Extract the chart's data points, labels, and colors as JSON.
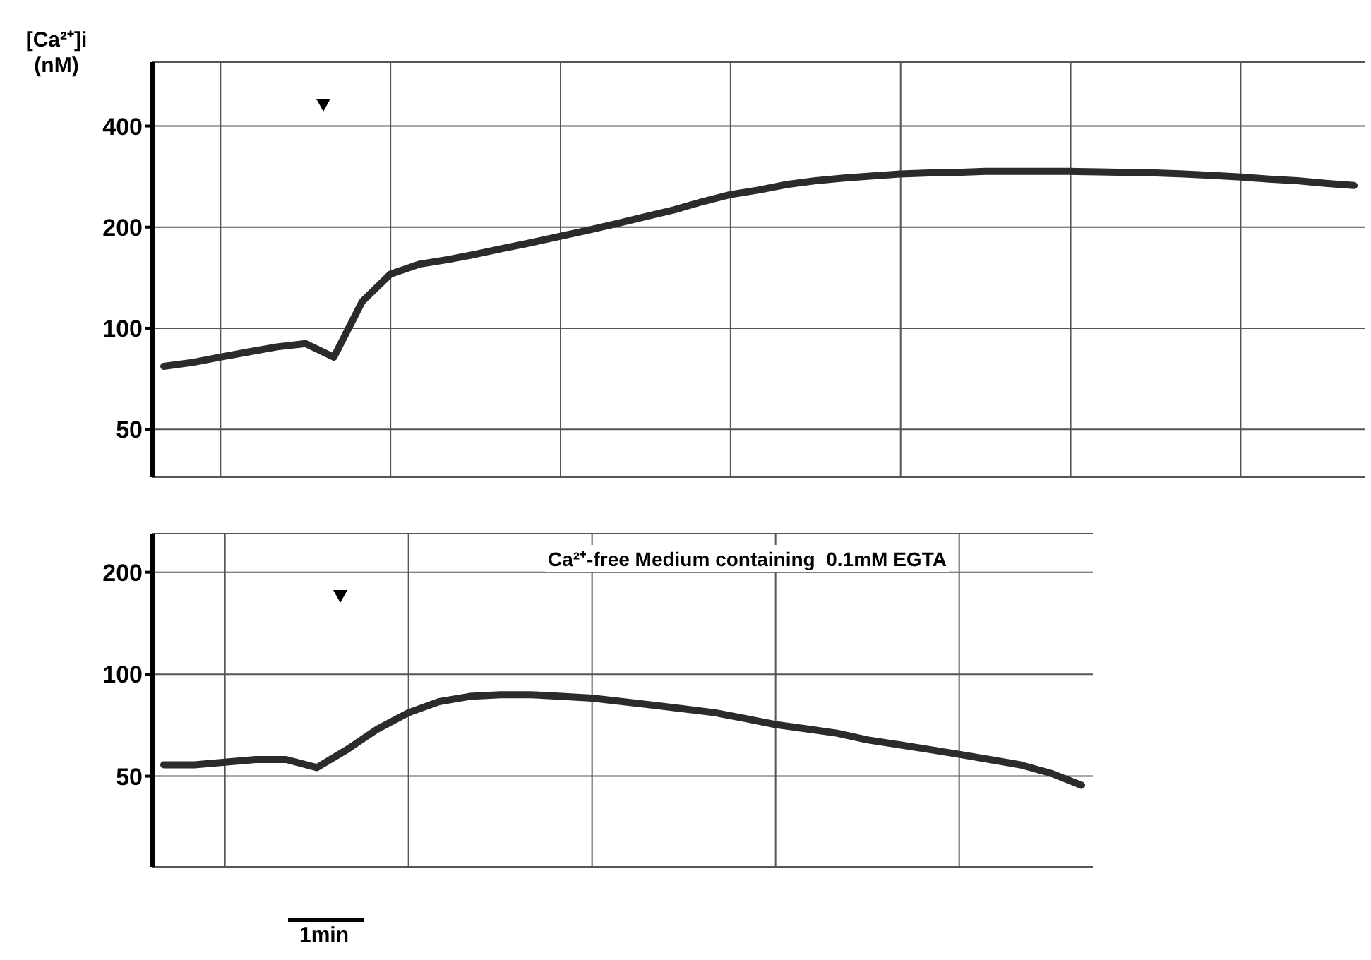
{
  "chart_data": [
    {
      "type": "line",
      "ylabel": "[Ca²⁺]i (nM)",
      "categories": [
        null,
        null,
        null,
        null,
        null,
        null,
        null,
        null,
        null,
        null,
        null,
        null,
        null,
        null,
        null,
        null,
        null,
        null,
        null,
        null,
        null,
        null,
        null,
        null,
        null,
        null,
        null,
        null,
        null,
        null,
        null,
        null,
        null,
        null,
        null,
        null,
        null,
        null,
        null,
        null,
        null,
        null,
        null
      ],
      "series": [
        {
          "color": "#2b2b2b",
          "values": [
            77,
            79,
            82,
            85,
            88,
            90,
            82,
            120,
            145,
            155,
            160,
            166,
            173,
            180,
            188,
            196,
            205,
            215,
            225,
            238,
            250,
            258,
            268,
            275,
            280,
            284,
            288,
            290,
            291,
            293,
            293,
            293,
            293,
            292,
            291,
            290,
            288,
            285,
            282,
            278,
            275,
            270,
            266
          ]
        }
      ],
      "log": "y",
      "ylim": [
        36,
        620
      ],
      "yticks": [
        50,
        100,
        200,
        400
      ],
      "grid": true,
      "tick_labels": "y",
      "line_style": "solid"
    },
    {
      "type": "line",
      "categories": [
        null,
        null,
        null,
        null,
        null,
        null,
        null,
        null,
        null,
        null,
        null,
        null,
        null,
        null,
        null,
        null,
        null,
        null,
        null,
        null,
        null,
        null,
        null,
        null,
        null,
        null,
        null,
        null,
        null,
        null,
        null
      ],
      "series": [
        {
          "color": "#2b2b2b",
          "values": [
            54,
            54,
            55,
            56,
            56,
            53,
            60,
            69,
            77,
            83,
            86,
            87,
            87,
            86,
            85,
            83,
            81,
            79,
            77,
            74,
            71,
            69,
            67,
            64,
            62,
            60,
            58,
            56,
            54,
            51,
            47
          ]
        }
      ],
      "log": "y",
      "ylim": [
        27,
        260
      ],
      "yticks": [
        50,
        100,
        200
      ],
      "grid": true,
      "tick_labels": "y",
      "line_style": "solid",
      "annotations": [
        "Ca²⁺-free Medium containing  0.1mM EGTA",
        "1min"
      ]
    }
  ]
}
